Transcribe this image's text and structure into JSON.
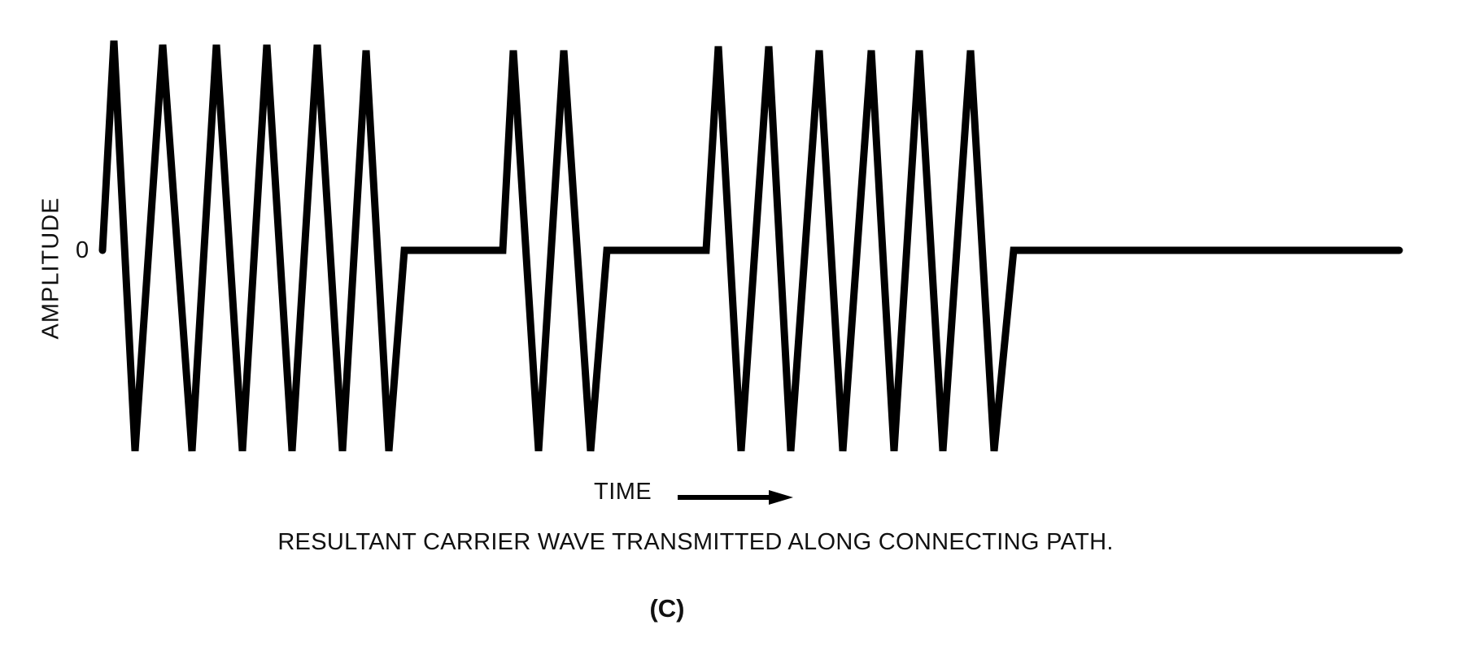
{
  "figure": {
    "y_axis_label": "AMPLITUDE",
    "zero_label": "0",
    "time_label": "TIME",
    "caption": "RESULTANT CARRIER WAVE TRANSMITTED ALONG CONNECTING PATH.",
    "panel_tag": "(C)"
  },
  "signal": {
    "description_type": "on-off keyed carrier",
    "bursts": [
      {
        "cycles": 6
      },
      {
        "idle": true
      },
      {
        "cycles": 2
      },
      {
        "idle": true
      },
      {
        "cycles": 6
      },
      {
        "idle": true
      }
    ],
    "color": "#000000"
  }
}
